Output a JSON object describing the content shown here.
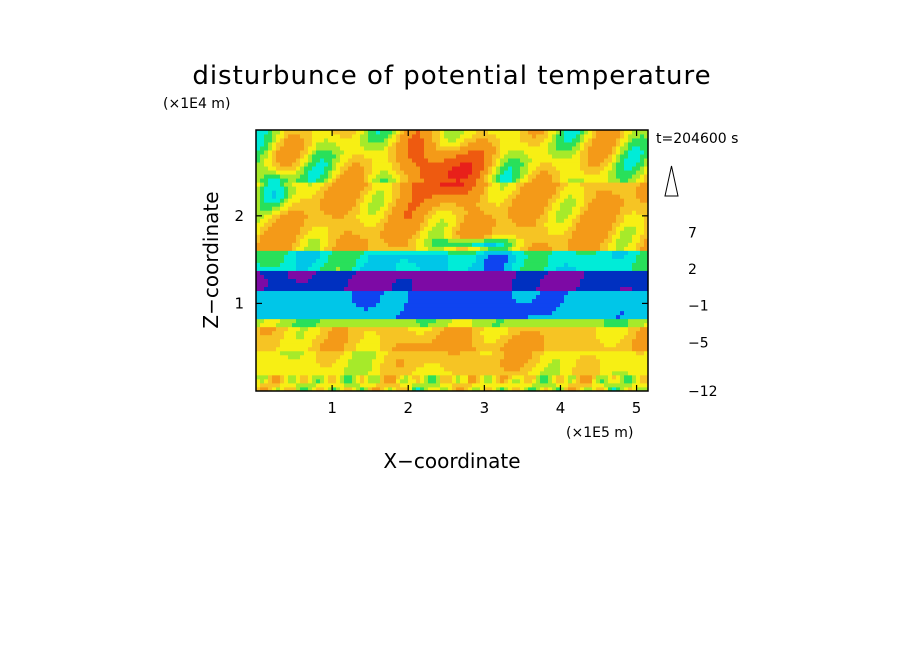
{
  "chart_data": {
    "type": "heatmap",
    "title": "disturbunce of potential temperature",
    "xlabel": "X−coordinate",
    "ylabel": "Z−coordinate",
    "x_unit": "(×1E5 m)",
    "y_unit": "(×1E4 m)",
    "time_label": "t=204600 s",
    "xlim": [
      0,
      5.15
    ],
    "ylim": [
      0,
      2.98
    ],
    "x_ticks": [
      {
        "v": 1,
        "label": "1"
      },
      {
        "v": 2,
        "label": "2"
      },
      {
        "v": 3,
        "label": "3"
      },
      {
        "v": 4,
        "label": "4"
      },
      {
        "v": 5,
        "label": "5"
      }
    ],
    "y_ticks": [
      {
        "v": 1,
        "label": "1"
      },
      {
        "v": 2,
        "label": "2"
      }
    ],
    "colorbar": {
      "labels": [
        {
          "v": 7,
          "label": "7"
        },
        {
          "v": 2,
          "label": "2"
        },
        {
          "v": -1,
          "label": "−1"
        },
        {
          "v": -5,
          "label": "−5"
        },
        {
          "v": -12,
          "label": "−12"
        }
      ],
      "levels": [
        {
          "value": -12,
          "color": "#ee1aa3"
        },
        {
          "value": -10,
          "color": "#c400a8"
        },
        {
          "value": -8,
          "color": "#7d0aa5"
        },
        {
          "value": -6,
          "color": "#0030c0"
        },
        {
          "value": -5,
          "color": "#0f44f0"
        },
        {
          "value": -3,
          "color": "#00c6e8"
        },
        {
          "value": -2,
          "color": "#00ecd8"
        },
        {
          "value": -1,
          "color": "#29e05a"
        },
        {
          "value": 0,
          "color": "#a6ea2a"
        },
        {
          "value": 1,
          "color": "#f7ef14"
        },
        {
          "value": 2,
          "color": "#f6c424"
        },
        {
          "value": 3,
          "color": "#f49a18"
        },
        {
          "value": 5,
          "color": "#ee5a10"
        },
        {
          "value": 7,
          "color": "#e8201a"
        },
        {
          "value": 9,
          "color": "#f2a6a6"
        },
        {
          "value": 11,
          "color": "#fac8c8"
        }
      ]
    },
    "field_layers": [
      {
        "z": [
          0.0,
          0.45
        ],
        "theta": 1.3,
        "amp": 1.2
      },
      {
        "z": [
          0.45,
          0.72
        ],
        "theta": 2.2,
        "amp": 1.3
      },
      {
        "z": [
          0.72,
          0.82
        ],
        "theta": 0.4,
        "amp": 0.8
      },
      {
        "z": [
          0.82,
          1.15
        ],
        "theta": -2.5,
        "amp": 0.5
      },
      {
        "z": [
          1.15,
          1.38
        ],
        "theta": -5.8,
        "amp": 1.0
      },
      {
        "z": [
          1.38,
          1.62
        ],
        "theta": -1.2,
        "amp": 1.4
      },
      {
        "z": [
          1.62,
          2.4
        ],
        "theta": 2.8,
        "amp": 2.2
      },
      {
        "z": [
          2.4,
          2.98
        ],
        "theta": 1.5,
        "amp": 3.0
      }
    ]
  }
}
